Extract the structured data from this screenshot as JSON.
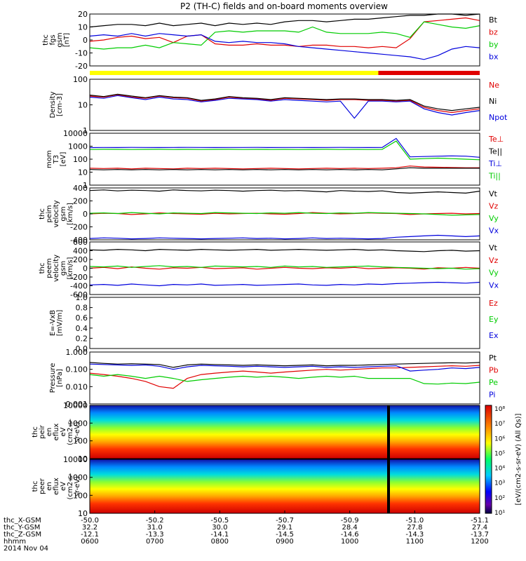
{
  "title": "P2 (TH-C) fields and on-board moments overview",
  "colors": {
    "black": "#000000",
    "red": "#e00000",
    "green": "#00cc00",
    "blue": "#0000dd",
    "yellow": "#ffff00"
  },
  "chart_data": [
    {
      "id": "fgs",
      "type": "line",
      "ylabel": [
        "thc",
        "fgs",
        "gsm",
        "[nT]"
      ],
      "ylim": [
        -20,
        20
      ],
      "yticks": [
        "20",
        "10",
        "0",
        "-10",
        "-20"
      ],
      "series": [
        {
          "name": "Bt",
          "color": "black",
          "values": [
            10,
            11,
            12,
            12,
            11,
            13,
            11,
            12,
            13,
            11,
            13,
            12,
            13,
            12,
            14,
            15,
            15,
            14,
            15,
            16,
            16,
            17,
            18,
            19,
            19,
            20,
            20,
            19,
            20
          ]
        },
        {
          "name": "bz",
          "color": "red",
          "values": [
            -1,
            0,
            2,
            3,
            1,
            2,
            -2,
            3,
            4,
            -3,
            -4,
            -4,
            -3,
            -4,
            -4,
            -5,
            -4,
            -4,
            -5,
            -5,
            -6,
            -5,
            -6,
            1,
            14,
            15,
            16,
            17,
            15
          ]
        },
        {
          "name": "by",
          "color": "green",
          "values": [
            -6,
            -7,
            -6,
            -6,
            -4,
            -6,
            -2,
            -3,
            -4,
            6,
            7,
            6,
            7,
            7,
            7,
            6,
            10,
            6,
            5,
            5,
            5,
            6,
            5,
            2,
            14,
            12,
            10,
            9,
            11
          ]
        },
        {
          "name": "bx",
          "color": "blue",
          "values": [
            3,
            4,
            3,
            5,
            3,
            5,
            4,
            3,
            4,
            -1,
            -2,
            -1,
            -2,
            -2,
            -3,
            -5,
            -6,
            -7,
            -8,
            -9,
            -10,
            -11,
            -12,
            -13,
            -15,
            -12,
            -7,
            -5,
            -6
          ]
        }
      ],
      "bar_segments": [
        {
          "from": 0,
          "to": 0.74,
          "color": "yellow"
        },
        {
          "from": 0.74,
          "to": 1,
          "color": "red"
        }
      ]
    },
    {
      "id": "density",
      "type": "line",
      "log": true,
      "ylabel": [
        "Density",
        "[cm-3]"
      ],
      "ylim": [
        1,
        100
      ],
      "yticks": [
        "100",
        "10",
        "1"
      ],
      "series": [
        {
          "name": "Ne",
          "color": "red",
          "values": [
            22,
            20,
            25,
            20,
            18,
            22,
            19,
            18,
            14,
            16,
            20,
            18,
            17,
            15,
            18,
            17,
            16,
            15,
            16,
            16,
            15,
            15,
            14,
            15,
            8,
            6,
            5,
            6,
            7
          ]
        },
        {
          "name": "Ni",
          "color": "black",
          "values": [
            24,
            21,
            26,
            22,
            19,
            23,
            20,
            19,
            15,
            17,
            21,
            19,
            18,
            16,
            19,
            18,
            17,
            16,
            17,
            17,
            16,
            16,
            15,
            16,
            9,
            7,
            6,
            7,
            8
          ]
        },
        {
          "name": "Npot",
          "color": "blue",
          "values": [
            20,
            18,
            23,
            19,
            16,
            20,
            17,
            16,
            13,
            15,
            18,
            17,
            16,
            14,
            16,
            15,
            14,
            13,
            14,
            3,
            14,
            14,
            13,
            14,
            7,
            5,
            4,
            5,
            6
          ]
        }
      ]
    },
    {
      "id": "temp",
      "type": "line",
      "log": true,
      "ylabel": [
        "mom",
        "T3",
        "[eV]"
      ],
      "ylim": [
        1,
        10000
      ],
      "yticks": [
        "10000",
        "1000",
        "100",
        "10",
        "1"
      ],
      "series": [
        {
          "name": "Te⊥",
          "color": "red",
          "values": [
            20,
            19,
            20,
            18,
            20,
            19,
            18,
            20,
            19,
            20,
            19,
            18,
            19,
            20,
            19,
            18,
            19,
            20,
            19,
            20,
            19,
            20,
            22,
            30,
            25,
            24,
            23,
            22,
            22
          ]
        },
        {
          "name": "Te||",
          "color": "black",
          "values": [
            16,
            15,
            16,
            15,
            16,
            15,
            16,
            15,
            16,
            15,
            16,
            15,
            16,
            15,
            16,
            15,
            16,
            15,
            16,
            15,
            16,
            15,
            18,
            22,
            20,
            20,
            20,
            20,
            20
          ]
        },
        {
          "name": "Ti⊥",
          "color": "blue",
          "values": [
            780,
            800,
            790,
            810,
            800,
            790,
            800,
            810,
            800,
            790,
            800,
            800,
            810,
            790,
            800,
            800,
            790,
            800,
            810,
            800,
            790,
            800,
            4000,
            150,
            160,
            170,
            180,
            170,
            140
          ]
        },
        {
          "name": "Ti||",
          "color": "green",
          "values": [
            560,
            580,
            570,
            560,
            570,
            580,
            560,
            570,
            560,
            570,
            580,
            560,
            570,
            560,
            570,
            560,
            570,
            580,
            560,
            570,
            560,
            570,
            2500,
            100,
            110,
            120,
            110,
            100,
            90
          ]
        }
      ]
    },
    {
      "id": "peim",
      "type": "line",
      "ylabel": [
        "thc",
        "peim",
        "velocity",
        "gsm",
        "[km/s]"
      ],
      "ylim": [
        -400,
        400
      ],
      "yticks": [
        "400",
        "200",
        "0",
        "-200",
        "-400"
      ],
      "series": [
        {
          "name": "Vt",
          "color": "black",
          "values": [
            360,
            370,
            355,
            365,
            360,
            350,
            370,
            360,
            355,
            365,
            360,
            350,
            360,
            365,
            355,
            360,
            350,
            340,
            360,
            350,
            345,
            355,
            330,
            320,
            330,
            340,
            330,
            320,
            350
          ]
        },
        {
          "name": "Vz",
          "color": "red",
          "values": [
            0,
            10,
            5,
            -10,
            0,
            15,
            5,
            0,
            -5,
            10,
            0,
            5,
            10,
            0,
            -5,
            5,
            20,
            10,
            0,
            5,
            15,
            10,
            5,
            -10,
            0,
            5,
            10,
            0,
            5
          ]
        },
        {
          "name": "Vy",
          "color": "green",
          "values": [
            10,
            15,
            5,
            20,
            10,
            0,
            15,
            10,
            5,
            20,
            15,
            10,
            5,
            15,
            10,
            20,
            10,
            5,
            15,
            10,
            20,
            15,
            10,
            5,
            0,
            -10,
            -20,
            -15,
            -10
          ]
        },
        {
          "name": "Vx",
          "color": "blue",
          "values": [
            -380,
            -370,
            -375,
            -385,
            -380,
            -370,
            -375,
            -380,
            -385,
            -380,
            -375,
            -370,
            -380,
            -375,
            -385,
            -380,
            -370,
            -380,
            -375,
            -380,
            -385,
            -380,
            -360,
            -350,
            -340,
            -330,
            -340,
            -350,
            -340
          ]
        }
      ]
    },
    {
      "id": "peem",
      "type": "line",
      "ylabel": [
        "thc",
        "peem",
        "velocity",
        "gsm",
        "[km/s]"
      ],
      "ylim": [
        -600,
        600
      ],
      "yticks": [
        "600",
        "400",
        "200",
        "0",
        "-200",
        "-400",
        "-600"
      ],
      "series": [
        {
          "name": "Vt",
          "color": "black",
          "values": [
            420,
            410,
            430,
            420,
            400,
            430,
            420,
            410,
            430,
            420,
            410,
            420,
            430,
            410,
            420,
            430,
            420,
            410,
            420,
            430,
            410,
            420,
            400,
            390,
            380,
            400,
            410,
            390,
            400
          ]
        },
        {
          "name": "Vz",
          "color": "red",
          "values": [
            0,
            20,
            -10,
            30,
            0,
            -20,
            10,
            0,
            20,
            -10,
            0,
            10,
            -20,
            0,
            20,
            0,
            -10,
            10,
            0,
            20,
            -10,
            0,
            10,
            0,
            -20,
            10,
            0,
            20,
            0
          ]
        },
        {
          "name": "Vy",
          "color": "green",
          "values": [
            40,
            30,
            50,
            20,
            40,
            60,
            30,
            40,
            20,
            50,
            40,
            30,
            40,
            20,
            50,
            30,
            40,
            20,
            30,
            40,
            50,
            30,
            20,
            10,
            0,
            -10,
            0,
            -20,
            -10
          ]
        },
        {
          "name": "Vx",
          "color": "blue",
          "values": [
            -380,
            -370,
            -390,
            -360,
            -380,
            -400,
            -370,
            -380,
            -360,
            -390,
            -380,
            -370,
            -390,
            -380,
            -370,
            -360,
            -380,
            -390,
            -370,
            -380,
            -360,
            -370,
            -350,
            -340,
            -330,
            -320,
            -330,
            -340,
            -320
          ]
        }
      ]
    },
    {
      "id": "efield",
      "type": "line",
      "ylabel": [
        "E=-VxB",
        "[mV/m]"
      ],
      "ylim": [
        0,
        1
      ],
      "yticks": [
        "1.0",
        "0.8",
        "0.6",
        "0.4",
        "0.2",
        "0.0"
      ],
      "series": [
        {
          "name": "Ez",
          "color": "red",
          "values": []
        },
        {
          "name": "Ey",
          "color": "green",
          "values": []
        },
        {
          "name": "Ex",
          "color": "blue",
          "values": []
        }
      ]
    },
    {
      "id": "pressure",
      "type": "line",
      "log": true,
      "ylabel": [
        "Pressure",
        "[nPa]"
      ],
      "ylim": [
        0.001,
        1
      ],
      "yticks": [
        "1.000",
        "0.100",
        "0.010",
        "0.001"
      ],
      "series": [
        {
          "name": "Pt",
          "color": "black",
          "values": [
            0.25,
            0.22,
            0.2,
            0.21,
            0.2,
            0.19,
            0.13,
            0.18,
            0.2,
            0.19,
            0.18,
            0.17,
            0.18,
            0.17,
            0.16,
            0.17,
            0.18,
            0.16,
            0.17,
            0.17,
            0.18,
            0.19,
            0.2,
            0.21,
            0.22,
            0.23,
            0.24,
            0.23,
            0.25
          ]
        },
        {
          "name": "Pb",
          "color": "red",
          "values": [
            0.06,
            0.05,
            0.04,
            0.03,
            0.02,
            0.01,
            0.008,
            0.03,
            0.05,
            0.06,
            0.07,
            0.08,
            0.07,
            0.06,
            0.07,
            0.08,
            0.09,
            0.1,
            0.09,
            0.1,
            0.11,
            0.12,
            0.12,
            0.13,
            0.14,
            0.15,
            0.16,
            0.15,
            0.17
          ]
        },
        {
          "name": "Pe",
          "color": "green",
          "values": [
            0.05,
            0.04,
            0.05,
            0.04,
            0.03,
            0.04,
            0.03,
            0.02,
            0.025,
            0.03,
            0.035,
            0.04,
            0.035,
            0.04,
            0.035,
            0.03,
            0.035,
            0.04,
            0.035,
            0.04,
            0.03,
            0.03,
            0.03,
            0.03,
            0.015,
            0.014,
            0.016,
            0.015,
            0.018
          ]
        },
        {
          "name": "Pi",
          "color": "blue",
          "values": [
            0.2,
            0.19,
            0.18,
            0.17,
            0.18,
            0.15,
            0.1,
            0.14,
            0.17,
            0.16,
            0.15,
            0.14,
            0.15,
            0.14,
            0.13,
            0.14,
            0.15,
            0.13,
            0.14,
            0.13,
            0.14,
            0.15,
            0.16,
            0.08,
            0.09,
            0.1,
            0.12,
            0.11,
            0.13
          ]
        }
      ]
    },
    {
      "id": "peir_spec",
      "type": "heatmap",
      "ylabel": [
        "thc",
        "peir",
        "en",
        "eflux",
        "eV",
        "(cm2-s-",
        "sr-eV)"
      ],
      "yticks": [
        "10000",
        "1000",
        "100",
        "10"
      ]
    },
    {
      "id": "peer_spec",
      "type": "heatmap",
      "ylabel": [
        "thc",
        "peer",
        "en",
        "eflux",
        "eV",
        "(cm2-s-",
        "sr-eV)"
      ],
      "yticks": [
        "10000",
        "1000",
        "100",
        "10"
      ]
    }
  ],
  "colorbar": {
    "label": "[eV/(cm2-s-sr-eV) (All Qs)]",
    "ticks": [
      "10⁸",
      "10⁷",
      "10⁶",
      "10⁵",
      "10⁴",
      "10³",
      "10²",
      "10¹"
    ]
  },
  "xaxis": {
    "rows": [
      {
        "label": "thc_X-GSM",
        "values": [
          "-50.0",
          "-50.2",
          "-50.5",
          "-50.7",
          "-50.9",
          "-51.0",
          "-51.1"
        ]
      },
      {
        "label": "thc_Y-GSM",
        "values": [
          "32.2",
          "31.0",
          "30.0",
          "29.1",
          "28.4",
          "27.8",
          "27.4"
        ]
      },
      {
        "label": "thc_Z-GSM",
        "values": [
          "-12.1",
          "-13.3",
          "-14.1",
          "-14.5",
          "-14.6",
          "-14.3",
          "-13.7"
        ]
      },
      {
        "label": "hhmm",
        "values": [
          "0600",
          "0700",
          "0800",
          "0900",
          "1000",
          "1100",
          "1200"
        ]
      }
    ],
    "date": "2014 Nov 04"
  }
}
